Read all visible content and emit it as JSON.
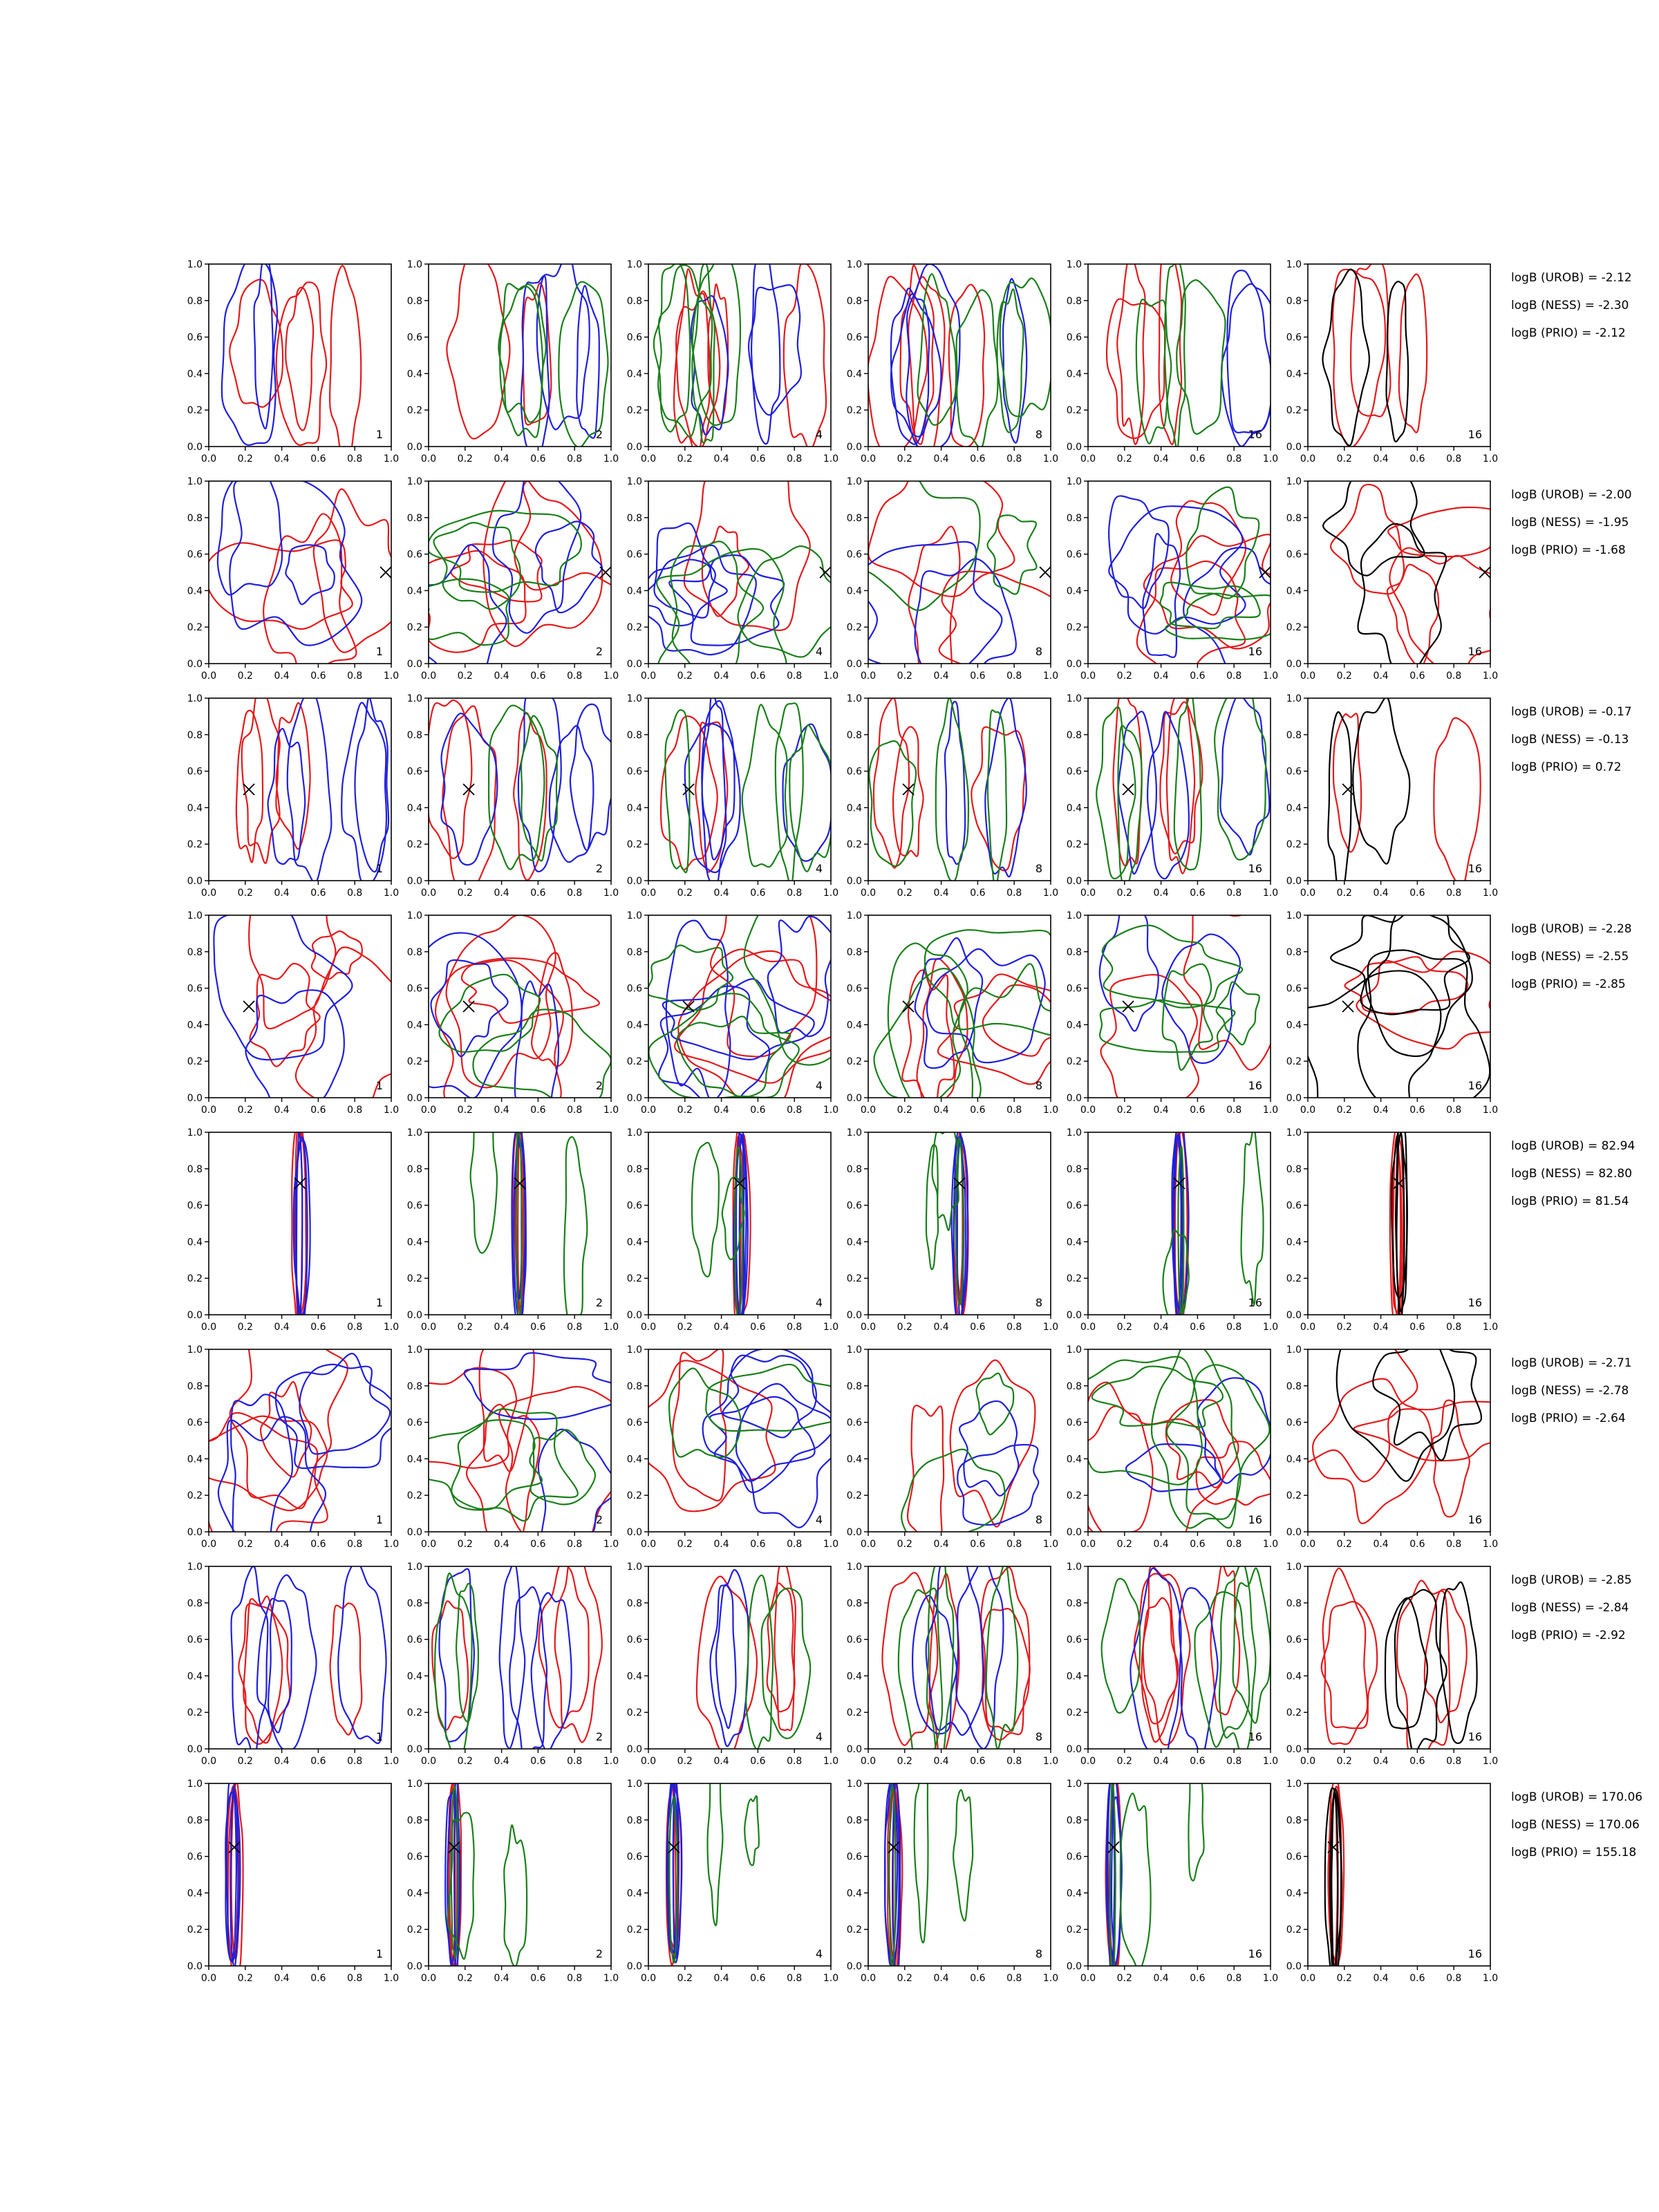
{
  "chart_data": {
    "type": "contour",
    "layout": {
      "rows": 8,
      "columns": 6
    },
    "xlim": [
      0.0,
      1.0
    ],
    "ylim": [
      0.0,
      1.0
    ],
    "ticks": [
      "0.0",
      "0.2",
      "0.4",
      "0.6",
      "0.8",
      "1.0"
    ],
    "panel_labels": [
      "1",
      "2",
      "4",
      "8",
      "16",
      "16"
    ],
    "colors": {
      "red": "#e41a1c",
      "blue": "#1f1fdd",
      "green": "#1a7f1a",
      "black": "#000000"
    },
    "rows": [
      {
        "marker": null,
        "orientation": "vertical",
        "focus_x": 0.27,
        "annotations": [
          "logB (UROB) = -2.12",
          "logB (NESS) = -2.30",
          "logB (PRIO) = -2.12"
        ]
      },
      {
        "marker": [
          0.97,
          0.5
        ],
        "orientation": "mixed",
        "focus_x": 0.85,
        "annotations": [
          "logB (UROB) = -2.00",
          "logB (NESS) = -1.95",
          "logB (PRIO) = -1.68"
        ]
      },
      {
        "marker": [
          0.22,
          0.5
        ],
        "orientation": "vertical",
        "focus_x": 0.22,
        "annotations": [
          "logB (UROB) = -0.17",
          "logB (NESS) = -0.13",
          "logB (PRIO) = 0.72"
        ]
      },
      {
        "marker": [
          0.22,
          0.5
        ],
        "orientation": "mixed",
        "focus_x": 0.7,
        "annotations": [
          "logB (UROB) = -2.28",
          "logB (NESS) = -2.55",
          "logB (PRIO) = -2.85"
        ]
      },
      {
        "marker": [
          0.5,
          0.72
        ],
        "orientation": "narrow",
        "focus_x": 0.5,
        "annotations": [
          "logB (UROB) = 82.94",
          "logB (NESS) = 82.80",
          "logB (PRIO) = 81.54"
        ]
      },
      {
        "marker": null,
        "orientation": "mixed",
        "focus_x": 0.75,
        "annotations": [
          "logB (UROB) = -2.71",
          "logB (NESS) = -2.78",
          "logB (PRIO) = -2.64"
        ]
      },
      {
        "marker": null,
        "orientation": "vertical",
        "focus_x": 0.75,
        "annotations": [
          "logB (UROB) = -2.85",
          "logB (NESS) = -2.84",
          "logB (PRIO) = -2.92"
        ]
      },
      {
        "marker": [
          0.14,
          0.65
        ],
        "orientation": "narrow",
        "focus_x": 0.14,
        "annotations": [
          "logB (UROB) = 170.06",
          "logB (NESS) = 170.06",
          "logB (PRIO) = 155.18"
        ]
      }
    ]
  }
}
